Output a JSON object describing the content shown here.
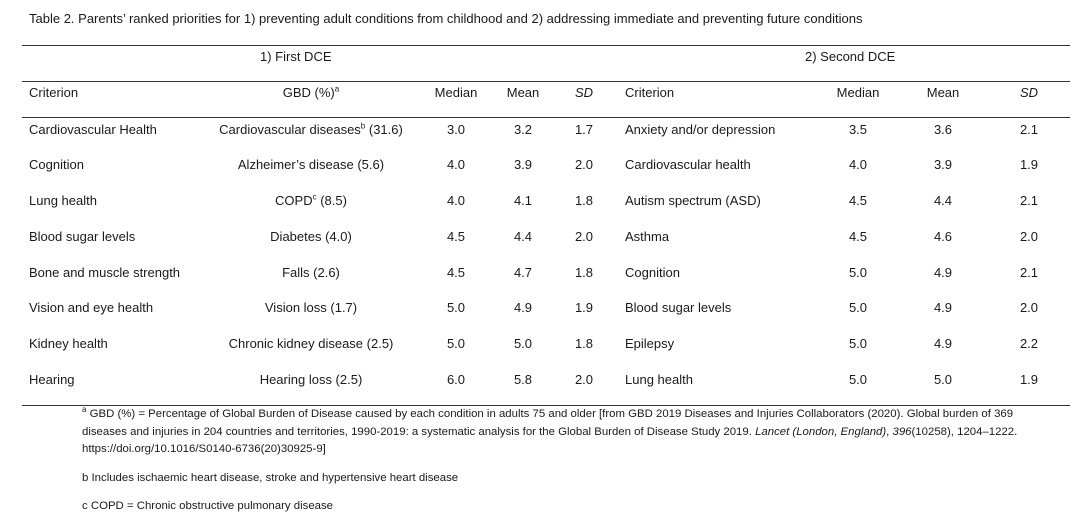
{
  "caption": "Table 2. Parents’ ranked priorities for 1) preventing adult conditions from childhood and 2) addressing immediate and preventing future conditions",
  "group_headers": {
    "first": "1) First DCE",
    "second": "2)   Second DCE"
  },
  "headers": {
    "criterion": "Criterion",
    "gbd": "GBD (%)",
    "gbd_sup": "a",
    "median": "Median",
    "mean": "Mean",
    "sd": "SD",
    "criterion2": "Criterion",
    "median2": "Median",
    "mean2": "Mean",
    "sd2": "SD"
  },
  "rows": [
    {
      "crit": "Cardiovascular Health",
      "gbd_pre": "Cardiovascular diseases",
      "gbd_sup": "b",
      "gbd_post": " (31.6)",
      "med": "3.0",
      "mean": "3.2",
      "sd": "1.7",
      "crit2": "Anxiety and/or depression",
      "med2": "3.5",
      "mean2": "3.6",
      "sd2": "2.1"
    },
    {
      "crit": "Cognition",
      "gbd_pre": "Alzheimer’s disease (5.6)",
      "gbd_sup": "",
      "gbd_post": "",
      "med": "4.0",
      "mean": "3.9",
      "sd": "2.0",
      "crit2": "Cardiovascular health",
      "med2": "4.0",
      "mean2": "3.9",
      "sd2": "1.9"
    },
    {
      "crit": "Lung health",
      "gbd_pre": "COPD",
      "gbd_sup": "c",
      "gbd_post": " (8.5)",
      "med": "4.0",
      "mean": "4.1",
      "sd": "1.8",
      "crit2": "Autism spectrum (ASD)",
      "med2": "4.5",
      "mean2": "4.4",
      "sd2": "2.1"
    },
    {
      "crit": "Blood sugar levels",
      "gbd_pre": "Diabetes (4.0)",
      "gbd_sup": "",
      "gbd_post": "",
      "med": "4.5",
      "mean": "4.4",
      "sd": "2.0",
      "crit2": "Asthma",
      "med2": "4.5",
      "mean2": "4.6",
      "sd2": "2.0"
    },
    {
      "crit": "Bone and muscle strength",
      "gbd_pre": "Falls (2.6)",
      "gbd_sup": "",
      "gbd_post": "",
      "med": "4.5",
      "mean": "4.7",
      "sd": "1.8",
      "crit2": "Cognition",
      "med2": "5.0",
      "mean2": "4.9",
      "sd2": "2.1"
    },
    {
      "crit": "Vision and eye health",
      "gbd_pre": "Vision loss (1.7)",
      "gbd_sup": "",
      "gbd_post": "",
      "med": "5.0",
      "mean": "4.9",
      "sd": "1.9",
      "crit2": "Blood sugar levels",
      "med2": "5.0",
      "mean2": "4.9",
      "sd2": "2.0"
    },
    {
      "crit": "Kidney health",
      "gbd_pre": "Chronic kidney disease (2.5)",
      "gbd_sup": "",
      "gbd_post": "",
      "med": "5.0",
      "mean": "5.0",
      "sd": "1.8",
      "crit2": "Epilepsy",
      "med2": "5.0",
      "mean2": "4.9",
      "sd2": "2.2"
    },
    {
      "crit": "Hearing",
      "gbd_pre": "Hearing loss (2.5)",
      "gbd_sup": "",
      "gbd_post": "",
      "med": "6.0",
      "mean": "5.8",
      "sd": "2.0",
      "crit2": "Lung health",
      "med2": "5.0",
      "mean2": "5.0",
      "sd2": "1.9"
    }
  ],
  "footnotes": {
    "a_sup": "a",
    "a_text1": " GBD (%) = Percentage of Global Burden of Disease caused by each condition in adults 75 and older [from GBD 2019 Diseases and Injuries Collaborators (2020). Global burden of 369 diseases and injuries in 204 countries and territories, 1990-2019: a systematic analysis for the Global Burden of Disease Study 2019. ",
    "a_journal": "Lancet (London, England)",
    "a_text2": ", ",
    "a_volume": "396",
    "a_text3": "(10258), 1204–1222. https://doi.org/10.1016/S0140-6736(20)30925-9]",
    "b": "b Includes ischaemic heart disease, stroke and hypertensive heart disease",
    "c": "c COPD = Chronic obstructive pulmonary disease"
  }
}
